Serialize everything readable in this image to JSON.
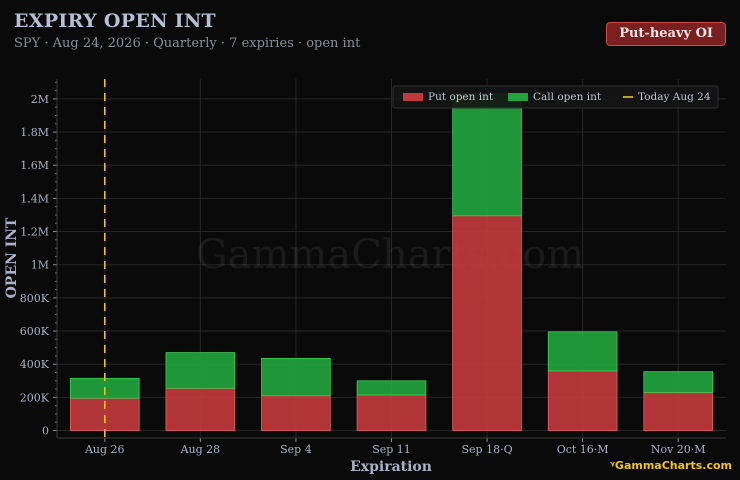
{
  "header": {
    "title": "EXPIRY OPEN INT",
    "subtitle": "SPY · Aug 24, 2026 · Quarterly · 7 expiries · open int",
    "badge": "Put-heavy OI"
  },
  "watermark": "GammaCharts.com",
  "brand": "ᵞGammaCharts.com",
  "colors": {
    "background": "#0a0a0a",
    "put": "#c0393b",
    "call": "#22a33c",
    "today_line": "#f0c419",
    "grid": "#262626",
    "axis_text": "#aab2c8"
  },
  "chart_data": {
    "type": "bar",
    "stacked": true,
    "categories": [
      "Aug 26",
      "Aug 28",
      "Sep 4",
      "Sep 11",
      "Sep 18·Q",
      "Oct 16·M",
      "Nov 20·M"
    ],
    "series": [
      {
        "name": "Put open int",
        "values": [
          195000,
          255000,
          210000,
          215000,
          1295000,
          360000,
          230000
        ]
      },
      {
        "name": "Call open int",
        "values": [
          120000,
          215000,
          225000,
          85000,
          735000,
          235000,
          125000
        ]
      }
    ],
    "today_marker": {
      "label": "Today Aug 24",
      "position_category": "Aug 26"
    },
    "xlabel": "Expiration",
    "ylabel": "OPEN INT",
    "ylim": [
      -45000,
      2120000
    ],
    "yticks": [
      0,
      200000,
      400000,
      600000,
      800000,
      1000000,
      1200000,
      1400000,
      1600000,
      1800000,
      2000000
    ],
    "ytick_labels": [
      "0",
      "200K",
      "400K",
      "600K",
      "800K",
      "1M",
      "1.2M",
      "1.4M",
      "1.6M",
      "1.8M",
      "2M"
    ],
    "grid": true,
    "legend_position": "top-right"
  }
}
